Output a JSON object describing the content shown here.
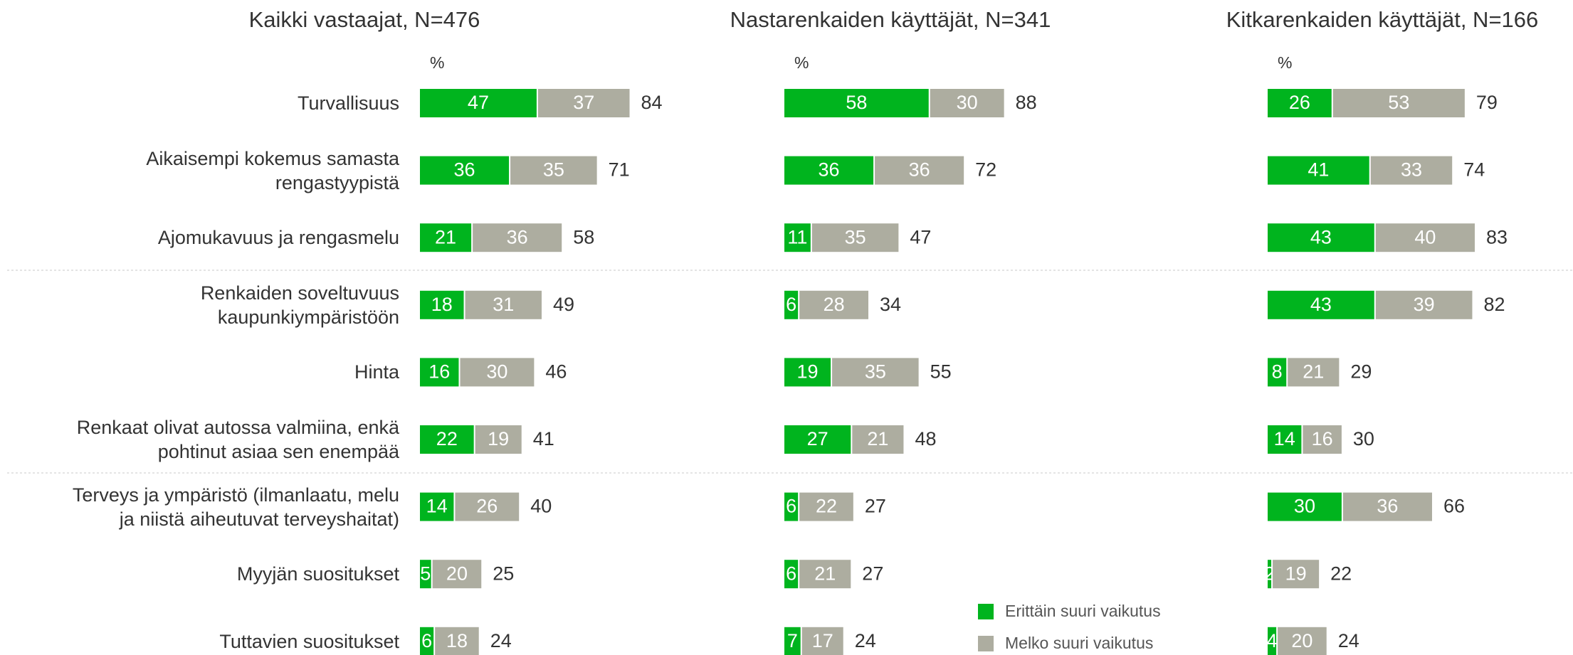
{
  "chart_data": [
    {
      "type": "bar",
      "orientation": "horizontal",
      "stacked": true,
      "title": "Kaikki vastaajat, N=476",
      "unit": "%",
      "categories": [
        "Turvallisuus",
        "Aikaisempi kokemus samasta\nrengastyypistä",
        "Ajomukavuus ja rengasmelu",
        "Renkaiden soveltuvuus\nkaupunkiympäristöön",
        "Hinta",
        "Renkaat olivat autossa valmiina, enkä\npohtinut asiaa sen enempää",
        "Terveys ja ympäristö (ilmanlaatu, melu\nja niistä aiheutuvat terveyshaitat)",
        "Myyjän suositukset",
        "Tuttavien suositukset"
      ],
      "series": [
        {
          "name": "Erittäin suuri vaikutus",
          "color": "#00b41e",
          "values": [
            47,
            36,
            21,
            18,
            16,
            22,
            14,
            5,
            6
          ]
        },
        {
          "name": "Melko suuri vaikutus",
          "color": "#adada0",
          "values": [
            37,
            35,
            36,
            31,
            30,
            19,
            26,
            20,
            18
          ]
        }
      ],
      "totals": [
        84,
        71,
        58,
        49,
        46,
        41,
        40,
        25,
        24
      ],
      "xlim": [
        0,
        100
      ]
    },
    {
      "type": "bar",
      "orientation": "horizontal",
      "stacked": true,
      "title": "Nastarenkaiden käyttäjät, N=341",
      "unit": "%",
      "series": [
        {
          "color": "#00b41e",
          "values": [
            58,
            36,
            11,
            6,
            19,
            27,
            6,
            6,
            7
          ]
        },
        {
          "color": "#adada0",
          "values": [
            30,
            36,
            35,
            28,
            35,
            21,
            22,
            21,
            17
          ]
        }
      ],
      "totals": [
        88,
        72,
        47,
        34,
        55,
        48,
        27,
        27,
        24
      ],
      "xlim": [
        0,
        100
      ]
    },
    {
      "type": "bar",
      "orientation": "horizontal",
      "stacked": true,
      "title": "Kitkarenkaiden käyttäjät, N=166",
      "unit": "%",
      "series": [
        {
          "color": "#00b41e",
          "values": [
            26,
            41,
            43,
            43,
            8,
            14,
            30,
            2,
            4
          ]
        },
        {
          "color": "#adada0",
          "values": [
            53,
            33,
            40,
            39,
            21,
            16,
            36,
            19,
            20
          ]
        }
      ],
      "totals": [
        79,
        74,
        83,
        82,
        29,
        30,
        66,
        22,
        24
      ],
      "xlim": [
        0,
        100
      ]
    }
  ]
}
